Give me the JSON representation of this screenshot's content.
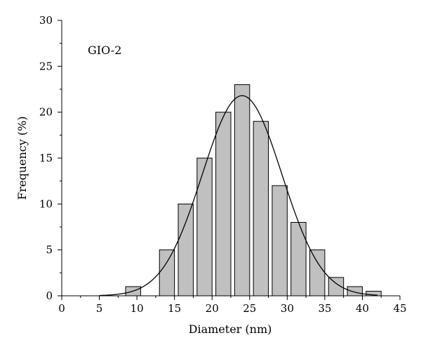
{
  "chart_data": {
    "type": "bar",
    "annotation": "GIO-2",
    "xlabel": "Diameter (nm)",
    "ylabel": "Frequency (%)",
    "xlim": [
      0,
      45
    ],
    "ylim": [
      0,
      30
    ],
    "xticks": [
      0,
      5,
      10,
      15,
      20,
      25,
      30,
      35,
      40,
      45
    ],
    "yticks": [
      0,
      5,
      10,
      15,
      20,
      25,
      30
    ],
    "bar_width": 2,
    "grid": false,
    "legend": "none",
    "colors": {
      "bar_fill": "#c0c0c0",
      "bar_stroke": "#000000",
      "curve": "#000000"
    },
    "bars": [
      {
        "x": 9.5,
        "value": 1
      },
      {
        "x": 14,
        "value": 5
      },
      {
        "x": 16.5,
        "value": 10
      },
      {
        "x": 19,
        "value": 15
      },
      {
        "x": 21.5,
        "value": 20
      },
      {
        "x": 24,
        "value": 23
      },
      {
        "x": 26.5,
        "value": 19
      },
      {
        "x": 29,
        "value": 12
      },
      {
        "x": 31.5,
        "value": 8
      },
      {
        "x": 34,
        "value": 5
      },
      {
        "x": 36.5,
        "value": 2
      },
      {
        "x": 39,
        "value": 1
      },
      {
        "x": 41.5,
        "value": 0.5
      }
    ],
    "fit_curve": {
      "kind": "gaussian",
      "center": 24,
      "sigma": 5.3,
      "amplitude": 21.8,
      "x_range": [
        5,
        42
      ]
    }
  }
}
